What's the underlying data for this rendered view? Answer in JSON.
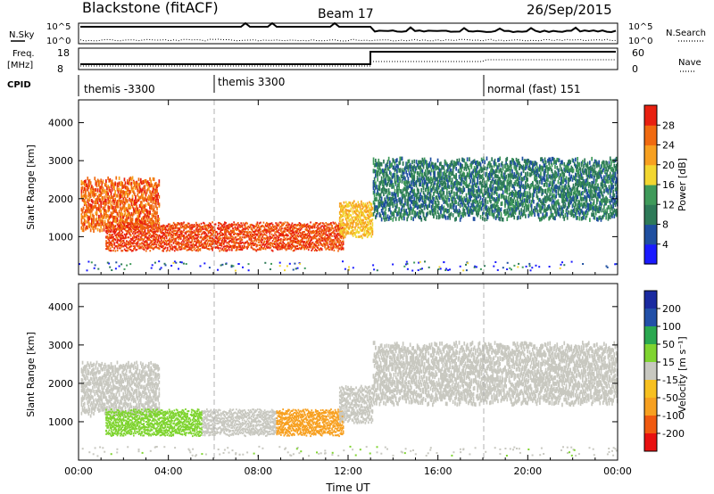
{
  "header": {
    "station": "Blackstone (fitACF)",
    "beam": "Beam 17",
    "date": "26/Sep/2015"
  },
  "panels": {
    "nsky_label": "N.Sky",
    "nsky_ticks": [
      "10^5",
      "10^0"
    ],
    "nsearch_label": "N.Search",
    "nsearch_ticks": [
      "10^5",
      "10^0"
    ],
    "freq_label": "Freq.",
    "freq_unit": "[MHz]",
    "freq_ticks": [
      "18",
      "8"
    ],
    "nave_label": "Nave",
    "nave_ticks": [
      "60",
      "0"
    ],
    "cpid_label": "CPID",
    "cpid_segments": [
      "themis -3300",
      "themis 3300",
      "normal (fast) 151"
    ]
  },
  "colors": {
    "power_scale": [
      "#1a1aff",
      "#1f4fa0",
      "#2e7a58",
      "#3f9a5a",
      "#f2d630",
      "#f7a020",
      "#f06a10",
      "#e82010"
    ],
    "velocity_scale": [
      "#e81010",
      "#f05a10",
      "#f7a020",
      "#f7c020",
      "#c8c8c0",
      "#7fd430",
      "#2aa850",
      "#2250a8",
      "#1a2aa0"
    ],
    "background": "#ffffff"
  },
  "chart_data": [
    {
      "type": "heatmap",
      "title": "Power",
      "ylabel": "Slant Range [km]",
      "xlabel": "",
      "x_ticks": [
        "00:00",
        "04:00",
        "08:00",
        "12:00",
        "16:00",
        "20:00",
        "00:00"
      ],
      "y_ticks": [
        1000,
        2000,
        3000,
        4000
      ],
      "ylim": [
        0,
        4600
      ],
      "colorbar_label": "Power [dB]",
      "colorbar_ticks": [
        4,
        8,
        12,
        16,
        20,
        24,
        28
      ],
      "dashed_lines_x_hours": [
        6,
        18
      ],
      "features": [
        {
          "name": "band-1",
          "start_h": 0.1,
          "end_h": 3.6,
          "range_from_km": 1200,
          "range_to_km": 2500,
          "level": 26
        },
        {
          "name": "band-2",
          "start_h": 1.2,
          "end_h": 11.8,
          "range_from_km": 650,
          "range_to_km": 1350,
          "level": 28
        },
        {
          "name": "band-3",
          "start_h": 11.6,
          "end_h": 13.1,
          "range_from_km": 1000,
          "range_to_km": 1900,
          "level": 20
        },
        {
          "name": "band-4",
          "start_h": 13.1,
          "end_h": 24.0,
          "range_from_km": 1500,
          "range_to_km": 3000,
          "level": 10
        }
      ]
    },
    {
      "type": "heatmap",
      "title": "Velocity",
      "ylabel": "Slant Range [km]",
      "xlabel": "Time UT",
      "x_ticks": [
        "00:00",
        "04:00",
        "08:00",
        "12:00",
        "16:00",
        "20:00",
        "00:00"
      ],
      "y_ticks": [
        1000,
        2000,
        3000,
        4000
      ],
      "ylim": [
        0,
        4600
      ],
      "colorbar_label": "Velocity [m s⁻¹]",
      "colorbar_ticks": [
        200,
        100,
        50,
        15,
        -15,
        -50,
        -100,
        -200
      ],
      "dashed_lines_x_hours": [
        6,
        18
      ],
      "features": [
        {
          "name": "band-1",
          "start_h": 0.1,
          "end_h": 3.6,
          "range_from_km": 1200,
          "range_to_km": 2500,
          "level": 0
        },
        {
          "name": "band-2a",
          "start_h": 1.2,
          "end_h": 5.5,
          "range_from_km": 650,
          "range_to_km": 1300,
          "level": 30
        },
        {
          "name": "band-2b",
          "start_h": 5.5,
          "end_h": 8.8,
          "range_from_km": 650,
          "range_to_km": 1300,
          "level": 0
        },
        {
          "name": "band-2c",
          "start_h": 8.8,
          "end_h": 11.8,
          "range_from_km": 650,
          "range_to_km": 1300,
          "level": -60
        },
        {
          "name": "band-3",
          "start_h": 11.6,
          "end_h": 13.1,
          "range_from_km": 1000,
          "range_to_km": 1900,
          "level": 0
        },
        {
          "name": "band-4",
          "start_h": 13.1,
          "end_h": 24.0,
          "range_from_km": 1500,
          "range_to_km": 3000,
          "level": 0
        }
      ]
    }
  ]
}
